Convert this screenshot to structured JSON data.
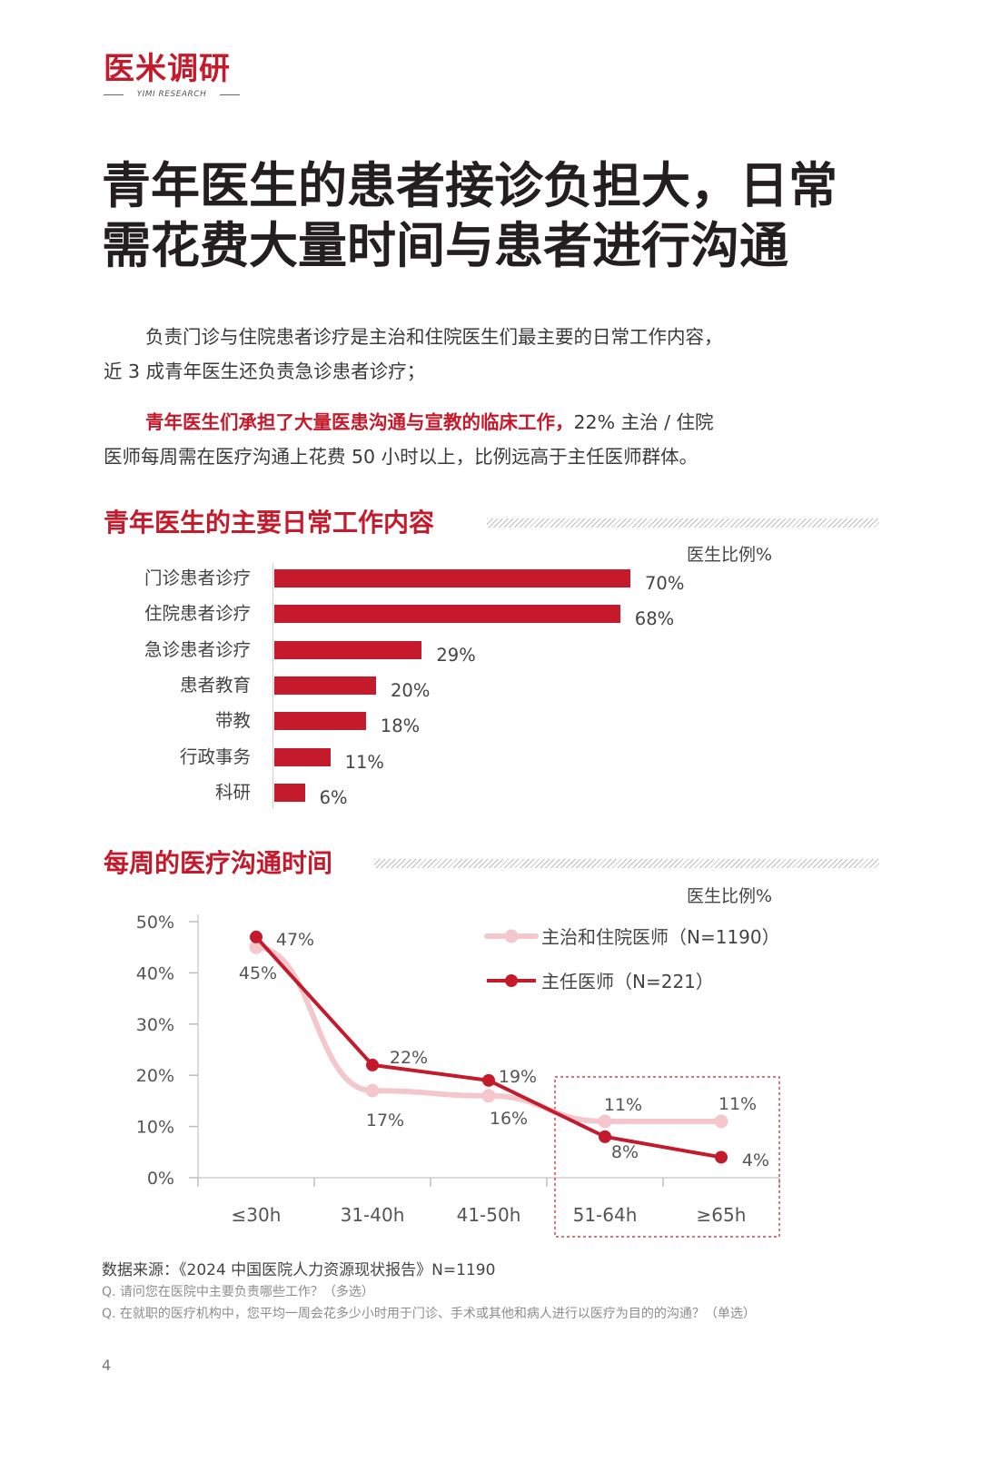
{
  "brand": {
    "name": "医米调研",
    "sub": "YIMI RESEARCH"
  },
  "title": {
    "line1": "青年医生的患者接诊负担大，日常",
    "line2": "需花费大量时间与患者进行沟通"
  },
  "intro": {
    "p1_line1": "负责门诊与住院患者诊疗是主治和住院医生们最主要的日常工作内容，",
    "p1_line2": "近 3 成青年医生还负责急诊患者诊疗；",
    "p2_highlight": "青年医生们承担了大量医患沟通与宣教的临床工作，",
    "p2_line1_rest": "22% 主治 / 住院",
    "p2_line2": "医师每周需在医疗沟通上花费 50 小时以上，比例远高于主任医师群体。"
  },
  "section1": {
    "title": "青年医生的主要日常工作内容",
    "unit": "医生比例%"
  },
  "section2": {
    "title": "每周的医疗沟通时间",
    "unit": "医生比例%"
  },
  "colors": {
    "accent": "#c41a2b",
    "series_light": "#f4c7cc",
    "text": "#333333"
  },
  "chart_data": [
    {
      "type": "bar",
      "orientation": "horizontal",
      "categories": [
        "门诊患者诊疗",
        "住院患者诊疗",
        "急诊患者诊疗",
        "患者教育",
        "带教",
        "行政事务",
        "科研"
      ],
      "values": [
        70,
        68,
        29,
        20,
        18,
        11,
        6
      ],
      "value_labels": [
        "70%",
        "68%",
        "29%",
        "20%",
        "18%",
        "11%",
        "6%"
      ],
      "unit_label": "医生比例%",
      "title": "青年医生的主要日常工作内容"
    },
    {
      "type": "line",
      "categories": [
        "≤30h",
        "31-40h",
        "41-50h",
        "51-64h",
        "≥65h"
      ],
      "y_ticks": [
        "0%",
        "10%",
        "20%",
        "30%",
        "40%",
        "50%"
      ],
      "ylim": [
        0,
        50
      ],
      "unit_label": "医生比例%",
      "title": "每周的医疗沟通时间",
      "highlight_categories": [
        "51-64h",
        "≥65h"
      ],
      "series": [
        {
          "name": "主治和住院医师（N=1190）",
          "values": [
            45,
            17,
            16,
            11,
            11
          ],
          "labels": [
            "45%",
            "17%",
            "16%",
            "11%",
            "11%"
          ],
          "color": "#f4c7cc"
        },
        {
          "name": "主任医师（N=221）",
          "values": [
            47,
            22,
            19,
            8,
            4
          ],
          "labels": [
            "47%",
            "22%",
            "19%",
            "8%",
            "4%"
          ],
          "color": "#c41a2b"
        }
      ]
    }
  ],
  "footer": {
    "source": "数据来源：《2024 中国医院人力资源现状报告》N=1190",
    "q1": "Q. 请问您在医院中主要负责哪些工作？（多选）",
    "q2": "Q. 在就职的医疗机构中，您平均一周会花多少小时用于门诊、手术或其他和病人进行以医疗为目的的沟通？（单选）",
    "page": "4"
  }
}
